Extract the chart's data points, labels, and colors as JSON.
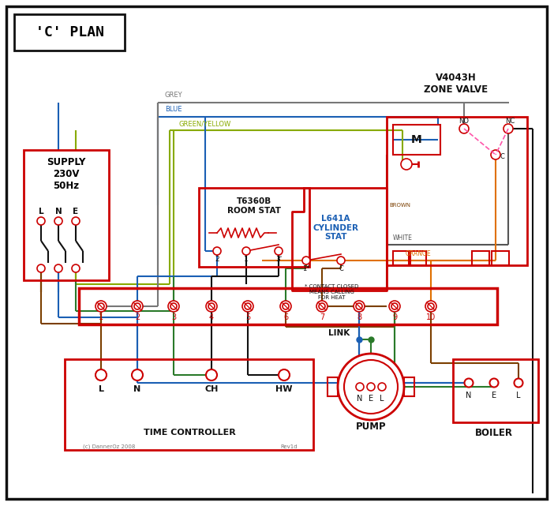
{
  "title": "'C' PLAN",
  "red": "#cc0000",
  "blue": "#1a5fb4",
  "green": "#2a7a2a",
  "black": "#111111",
  "brown": "#7B3F00",
  "orange": "#E07000",
  "grey": "#777777",
  "gy": "#88aa00",
  "ww": "#555555",
  "pink": "#ff55aa",
  "supply_text": "SUPPLY\n230V\n50Hz",
  "zone_valve_text": "V4043H\nZONE VALVE",
  "room_stat_label": "T6360B\nROOM STAT",
  "cyl_stat_label": "L641A\nCYLINDER\nSTAT",
  "tc_label": "TIME CONTROLLER",
  "pump_label": "PUMP",
  "boiler_label": "BOILER",
  "link_label": "LINK",
  "contact_note": "* CONTACT CLOSED\nMEANS CALLING\nFOR HEAT",
  "copyright": "(c) DannerOz 2008",
  "revision": "Rev1d"
}
